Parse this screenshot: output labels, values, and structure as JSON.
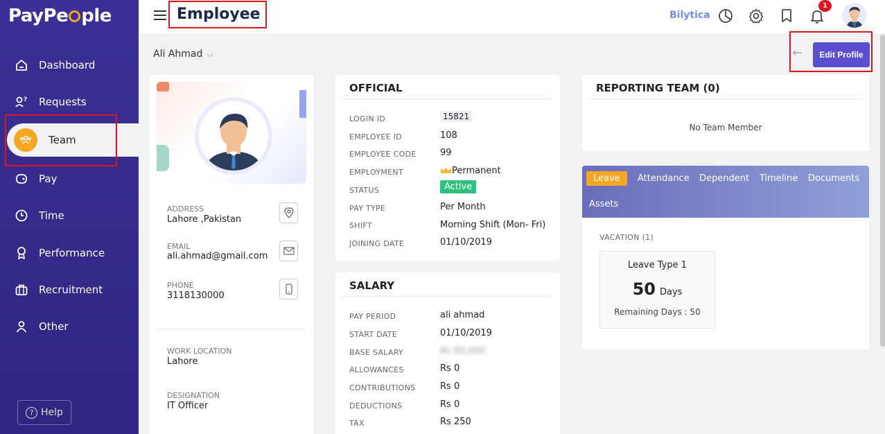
{
  "brand": {
    "name_start": "PayPe",
    "name_end": "ple"
  },
  "sidebar": {
    "items": [
      {
        "label": "Dashboard",
        "icon": "home-icon"
      },
      {
        "label": "Requests",
        "icon": "requests-icon"
      },
      {
        "label": "Team",
        "icon": "team-icon",
        "active": true
      },
      {
        "label": "Pay",
        "icon": "wallet-icon"
      },
      {
        "label": "Time",
        "icon": "clock-icon"
      },
      {
        "label": "Performance",
        "icon": "award-icon"
      },
      {
        "label": "Recruitment",
        "icon": "briefcase-icon"
      },
      {
        "label": "Other",
        "icon": "user-icon"
      }
    ],
    "help_label": "Help"
  },
  "header": {
    "title": "Employee",
    "bilytica": "Bilytica",
    "notification_count": "1"
  },
  "employee": {
    "name": "Ali Ahmad"
  },
  "actions": {
    "edit_profile": "Edit Profile"
  },
  "profile": {
    "address_label": "ADDRESS",
    "address": "Lahore ,Pakistan",
    "email_label": "EMAIL",
    "email": "ali.ahmad@gmail.com",
    "phone_label": "PHONE",
    "phone": "3118130000",
    "work_location_label": "WORK LOCATION",
    "work_location": "Lahore",
    "designation_label": "DESIGNATION",
    "designation": "IT Officer"
  },
  "official": {
    "title": "OFFICIAL",
    "rows": [
      {
        "label": "LOGIN ID",
        "value": "15821"
      },
      {
        "label": "EMPLOYEE ID",
        "value": "108"
      },
      {
        "label": "EMPLOYEE CODE",
        "value": "99"
      },
      {
        "label": "EMPLOYMENT",
        "value": "Permanent"
      },
      {
        "label": "STATUS",
        "value": "Active"
      },
      {
        "label": "PAY TYPE",
        "value": "Per Month"
      },
      {
        "label": "SHIFT",
        "value": "Morning Shift (Mon- Fri)"
      },
      {
        "label": "JOINING DATE",
        "value": "01/10/2019"
      }
    ]
  },
  "salary": {
    "title": "SALARY",
    "rows": [
      {
        "label": "PAY PERIOD",
        "value": "ali ahmad"
      },
      {
        "label": "START DATE",
        "value": "01/10/2019"
      },
      {
        "label": "BASE SALARY",
        "value": "Rs 60,000"
      },
      {
        "label": "ALLOWANCES",
        "value": "Rs 0"
      },
      {
        "label": "CONTRIBUTIONS",
        "value": "Rs 0"
      },
      {
        "label": "DEDUCTIONS",
        "value": "Rs 0"
      },
      {
        "label": "TAX",
        "value": "Rs 250"
      }
    ]
  },
  "reporting": {
    "title": "REPORTING TEAM (0)",
    "empty": "No Team Member"
  },
  "tabs": {
    "items": [
      "Leave",
      "Attendance",
      "Dependent",
      "Timeline",
      "Documents",
      "Assets"
    ],
    "active": "Leave"
  },
  "leave": {
    "vacation_label": "VACATION (1)",
    "type": "Leave Type 1",
    "days": "50",
    "days_unit": "Days",
    "remaining": "Remaining Days : 50"
  },
  "colors": {
    "sidebar": "#3a3096",
    "accent": "#f5a623",
    "primary_button": "#5b4fd1",
    "highlight": "#e0141e",
    "status_active": "#2ec27e"
  }
}
